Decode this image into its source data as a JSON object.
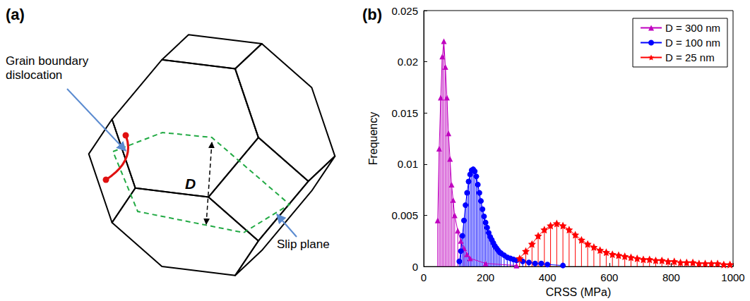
{
  "diagram": {
    "title": "(a)",
    "labels": {
      "dislocation": "Grain boundary dislocation",
      "slip_plane": "Slip plane",
      "size": "D"
    }
  },
  "chart_data": {
    "type": "stem",
    "title": "(b)",
    "x_label": "CRSS (MPa)",
    "y_label": "Frequency",
    "xlim": [
      0,
      1000
    ],
    "xticks": [
      0,
      200,
      400,
      600,
      800,
      1000
    ],
    "ylim": [
      0,
      0.025
    ],
    "yticks": [
      0,
      0.005,
      0.01,
      0.015,
      0.02,
      0.025
    ],
    "grid": false,
    "legend": "upper right",
    "series": [
      {
        "name": "D = 300 nm",
        "color": "#bf00bf",
        "marker": "triangle",
        "x": [
          45,
          50,
          55,
          60,
          65,
          70,
          75,
          80,
          85,
          90,
          95,
          100,
          110,
          120,
          130,
          140,
          150,
          200,
          300
        ],
        "values": [
          0.0045,
          0.0115,
          0.0165,
          0.0205,
          0.022,
          0.0195,
          0.0165,
          0.013,
          0.0105,
          0.008,
          0.0065,
          0.005,
          0.0035,
          0.0025,
          0.0018,
          0.0012,
          0.0008,
          0.0003,
          0.0001
        ]
      },
      {
        "name": "D = 100 nm",
        "color": "#0000ff",
        "marker": "circle",
        "x": [
          115,
          120,
          125,
          130,
          135,
          140,
          145,
          150,
          155,
          160,
          165,
          170,
          175,
          180,
          185,
          190,
          195,
          200,
          205,
          210,
          215,
          220,
          225,
          230,
          235,
          240,
          245,
          250,
          260,
          270,
          280,
          290,
          300,
          320,
          340,
          360,
          380,
          400,
          450
        ],
        "values": [
          0.0005,
          0.0015,
          0.003,
          0.0045,
          0.006,
          0.0072,
          0.0083,
          0.009,
          0.0094,
          0.0095,
          0.0093,
          0.0088,
          0.008,
          0.0072,
          0.0064,
          0.0056,
          0.0049,
          0.0043,
          0.0038,
          0.0033,
          0.0029,
          0.0026,
          0.0023,
          0.002,
          0.0018,
          0.0016,
          0.0014,
          0.0013,
          0.0011,
          0.0009,
          0.0008,
          0.0007,
          0.0006,
          0.0005,
          0.0004,
          0.0003,
          0.0003,
          0.0002,
          0.0001
        ]
      },
      {
        "name": "D = 25 nm",
        "color": "#ff0000",
        "marker": "star",
        "x": [
          310,
          330,
          350,
          370,
          390,
          410,
          430,
          450,
          470,
          490,
          510,
          530,
          550,
          570,
          590,
          610,
          630,
          650,
          670,
          690,
          710,
          730,
          750,
          770,
          790,
          810,
          830,
          850,
          870,
          890,
          910,
          930,
          950,
          970,
          990
        ],
        "values": [
          0.0008,
          0.0015,
          0.0022,
          0.003,
          0.0036,
          0.004,
          0.0042,
          0.004,
          0.0036,
          0.0031,
          0.0026,
          0.0022,
          0.0019,
          0.0016,
          0.0014,
          0.0012,
          0.0011,
          0.001,
          0.0009,
          0.0008,
          0.0007,
          0.0007,
          0.0006,
          0.0006,
          0.0005,
          0.0005,
          0.0004,
          0.0004,
          0.0004,
          0.0003,
          0.0003,
          0.0003,
          0.0003,
          0.0002,
          0.0002
        ]
      }
    ]
  }
}
